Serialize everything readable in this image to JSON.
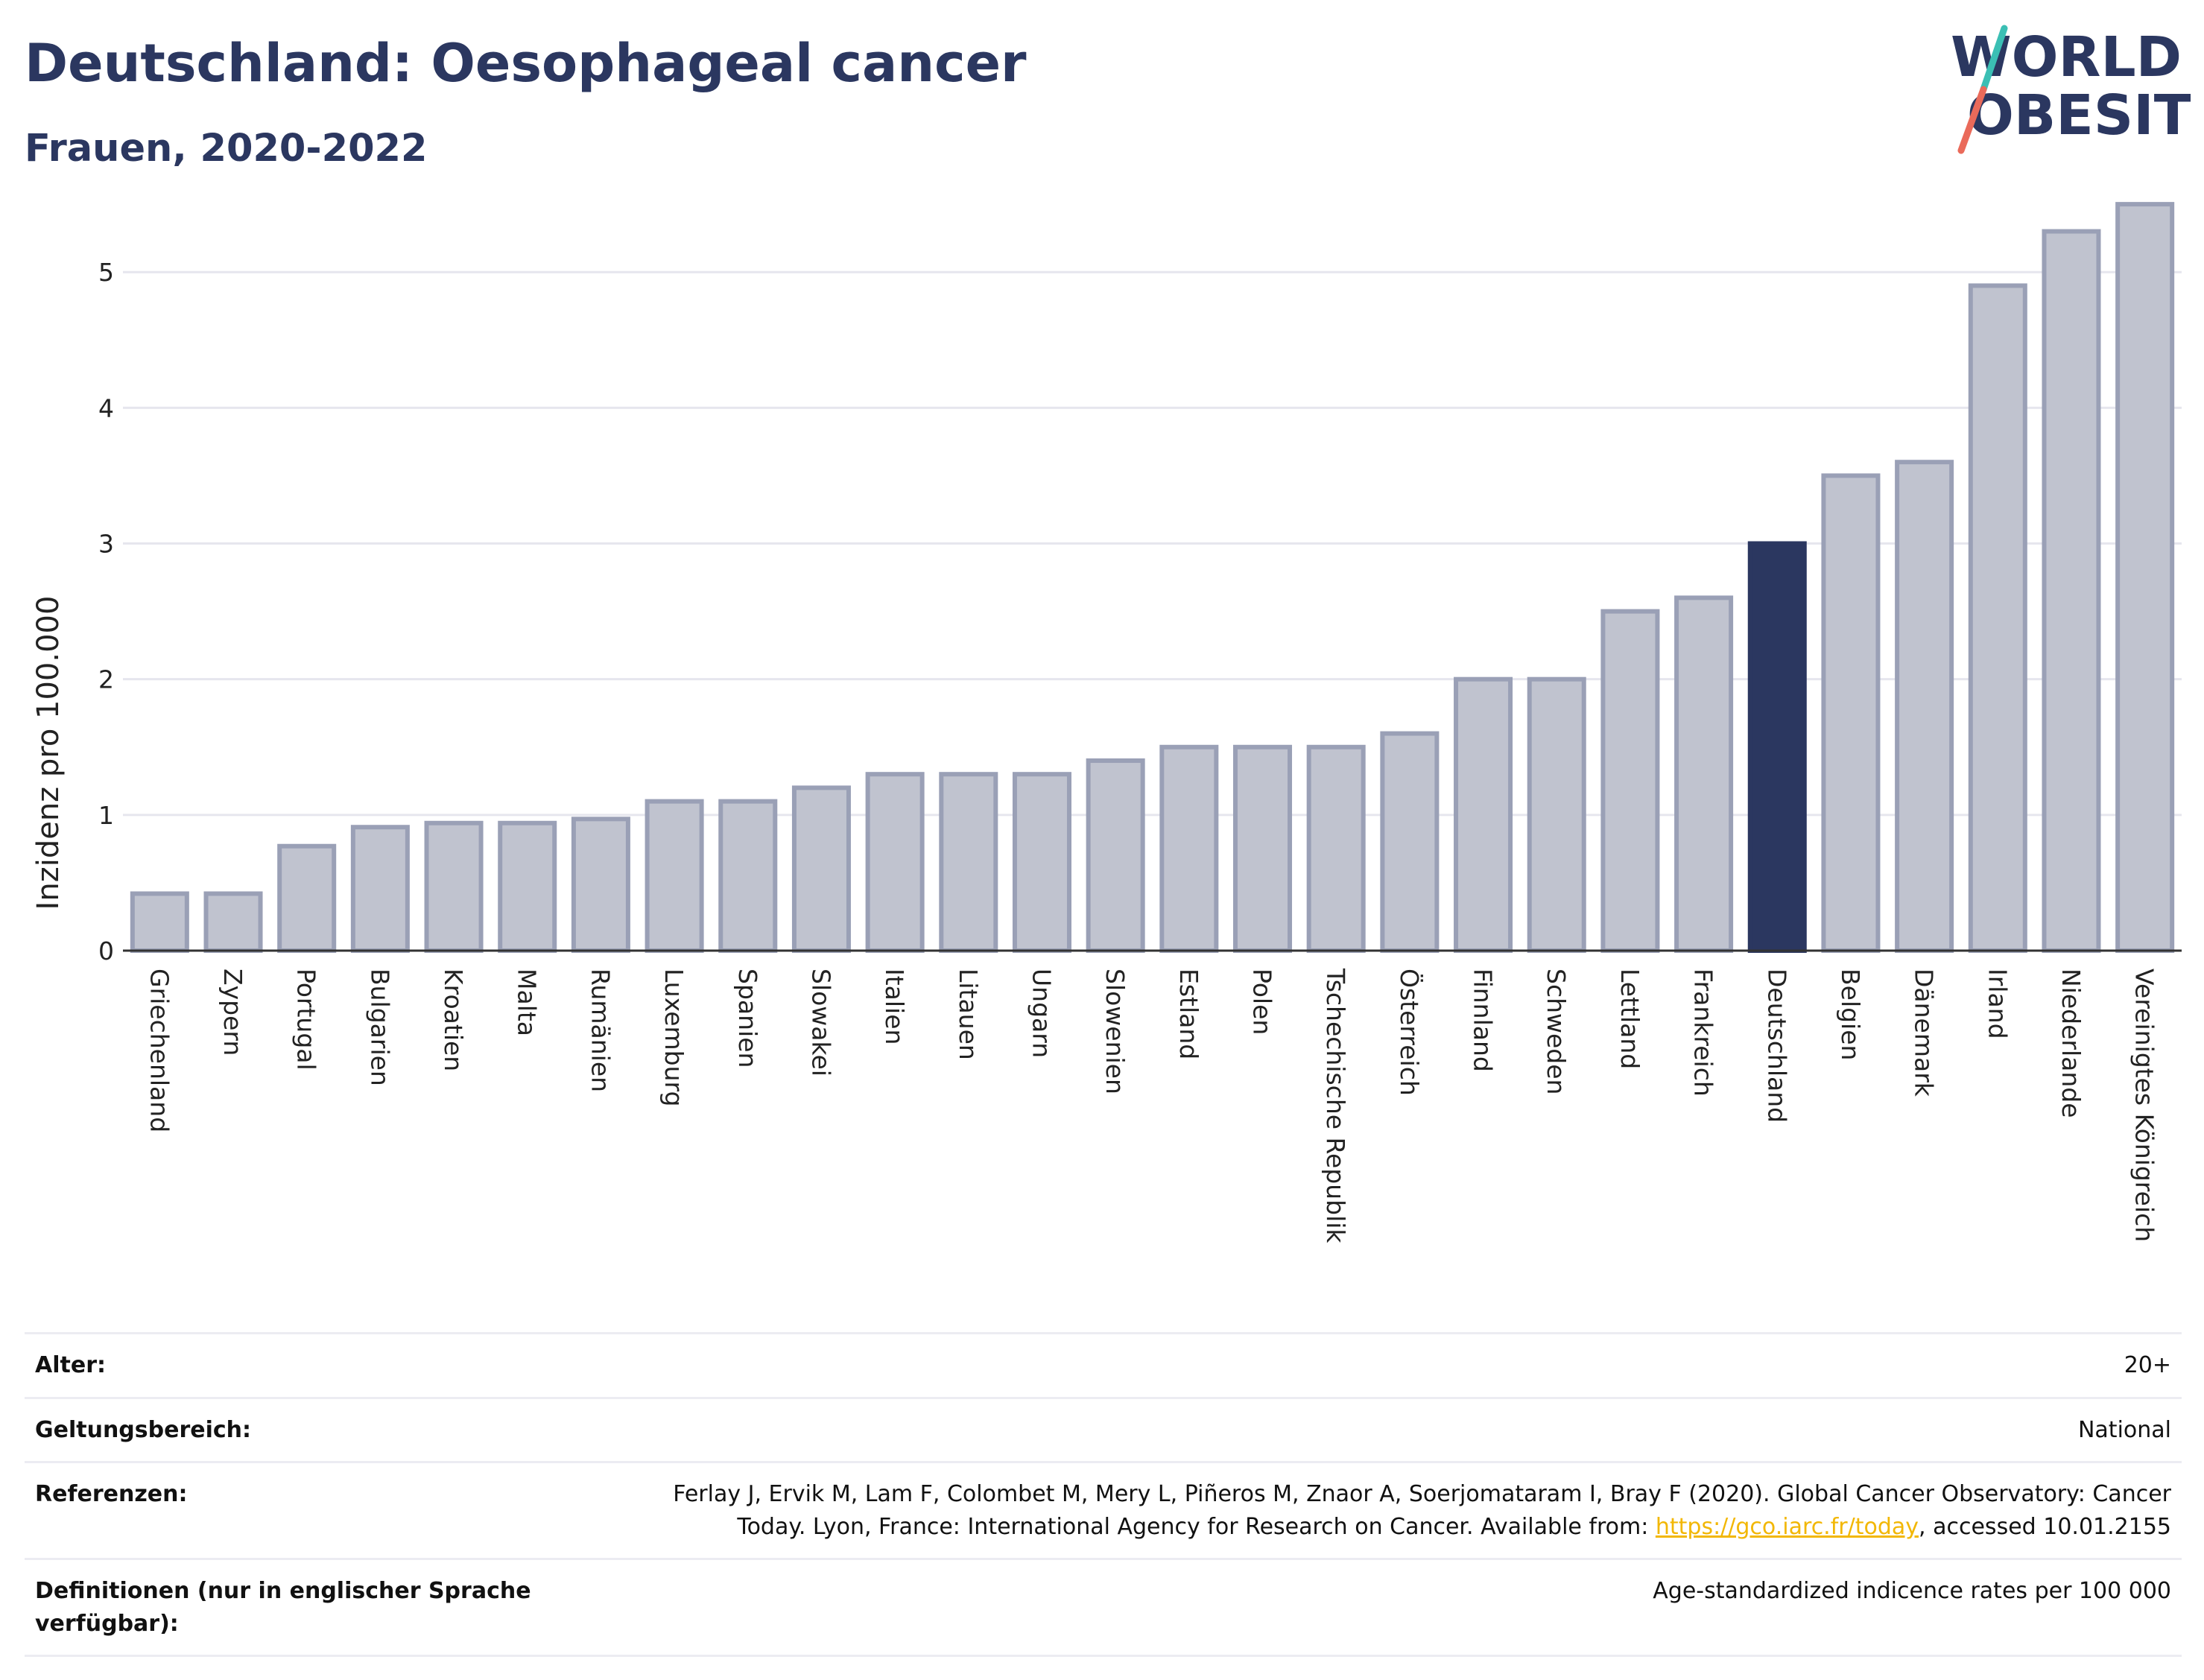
{
  "header": {
    "title": "Deutschland: Oesophageal cancer",
    "subtitle": "Frauen, 2020-2022"
  },
  "logo": {
    "line1": "WORLD",
    "line2": "OBESITY",
    "colors": {
      "text": "#2b3760",
      "slash_top": "#3bbfb4",
      "slash_bottom": "#ea6a5a"
    }
  },
  "colors": {
    "bar_default": "#c0c3cf",
    "bar_default_border": "#9aa0b6",
    "bar_highlight": "#2b3760",
    "grid": "#e6e6ee",
    "axis": "#333333"
  },
  "chart_data": {
    "type": "bar",
    "title": "",
    "xlabel": "",
    "ylabel": "Inzidenz pro 100.000",
    "ylim": [
      0,
      5.55
    ],
    "yticks": [
      0,
      1,
      2,
      3,
      4,
      5
    ],
    "grid": true,
    "highlight": "Deutschland",
    "categories": [
      "Griechenland",
      "Zypern",
      "Portugal",
      "Bulgarien",
      "Kroatien",
      "Malta",
      "Rumänien",
      "Luxemburg",
      "Spanien",
      "Slowakei",
      "Italien",
      "Litauen",
      "Ungarn",
      "Slowenien",
      "Estland",
      "Polen",
      "Tschechische Republik",
      "Österreich",
      "Finnland",
      "Schweden",
      "Lettland",
      "Frankreich",
      "Deutschland",
      "Belgien",
      "Dänemark",
      "Irland",
      "Niederlande",
      "Vereinigtes Königreich"
    ],
    "values": [
      0.42,
      0.42,
      0.77,
      0.91,
      0.94,
      0.94,
      0.97,
      1.1,
      1.1,
      1.2,
      1.3,
      1.3,
      1.3,
      1.4,
      1.5,
      1.5,
      1.5,
      1.6,
      2.0,
      2.0,
      2.5,
      2.6,
      3.0,
      3.5,
      3.6,
      4.9,
      5.3,
      5.5
    ]
  },
  "meta": {
    "age_label": "Alter:",
    "age_value": "20+",
    "scope_label": "Geltungsbereich:",
    "scope_value": "National",
    "refs_label": "Referenzen:",
    "refs_text_before": "Ferlay J, Ervik M, Lam F, Colombet M, Mery L, Piñeros M, Znaor A, Soerjomataram I, Bray F (2020). Global Cancer Observatory: Cancer Today. Lyon, France: International Agency for Research on Cancer. Available from: ",
    "refs_link": "https://gco.iarc.fr/today",
    "refs_text_after": ", accessed 10.01.2155",
    "defs_label": "Definitionen (nur in englischer Sprache verfügbar):",
    "defs_value": "Age-standardized indicence rates per 100 000"
  }
}
